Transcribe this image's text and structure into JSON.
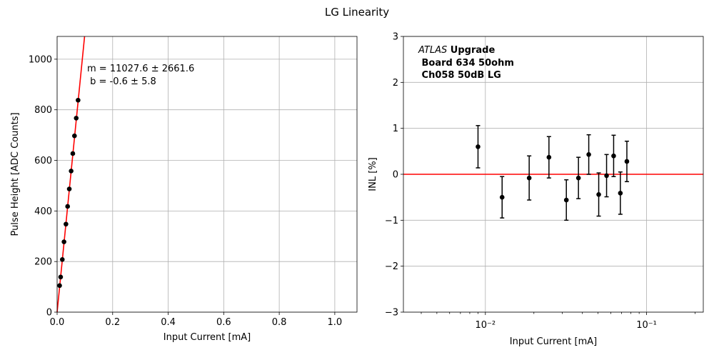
{
  "suptitle": "LG Linearity",
  "chart_data": [
    {
      "type": "scatter",
      "title": "",
      "xlabel": "Input Current [mA]",
      "ylabel": "Pulse Height [ADC Counts]",
      "xlim": [
        0,
        1.08
      ],
      "ylim": [
        0,
        1090
      ],
      "xticks": [
        0.0,
        0.2,
        0.4,
        0.6,
        0.8,
        1.0
      ],
      "xtick_labels": [
        "0.0",
        "0.2",
        "0.4",
        "0.6",
        "0.8",
        "1.0"
      ],
      "yticks": [
        0,
        200,
        400,
        600,
        800,
        1000
      ],
      "ytick_labels": [
        "0",
        "200",
        "400",
        "600",
        "800",
        "1000"
      ],
      "grid": true,
      "series": [
        {
          "name": "data",
          "color": "#000000",
          "x": [
            0.009,
            0.0127,
            0.0187,
            0.0248,
            0.0318,
            0.0378,
            0.0438,
            0.0505,
            0.0565,
            0.0625,
            0.0688,
            0.0755
          ],
          "y": [
            105,
            139,
            208,
            278,
            348,
            418,
            487,
            558,
            627,
            697,
            767,
            838
          ]
        }
      ],
      "fit": {
        "type": "line",
        "color": "#ff0000",
        "slope": 11027.6,
        "intercept": -0.6
      },
      "annotation": [
        "m = 11027.6 ± 2661.6",
        " b = -0.6 ± 5.8"
      ]
    },
    {
      "type": "scatter",
      "title": "",
      "xlabel": "Input Current [mA]",
      "ylabel": "INL [%]",
      "xscale": "log",
      "xlim": [
        0.0031,
        0.225
      ],
      "ylim": [
        -3,
        3
      ],
      "xticks": [
        0.01,
        0.1
      ],
      "xtick_labels": [
        "10⁻²",
        "10⁻¹"
      ],
      "yticks": [
        -3,
        -2,
        -1,
        0,
        1,
        2,
        3
      ],
      "ytick_labels": [
        "−3",
        "−2",
        "−1",
        "0",
        "1",
        "2",
        "3"
      ],
      "grid": true,
      "series": [
        {
          "name": "INL",
          "color": "#000000",
          "x": [
            0.009,
            0.0127,
            0.0187,
            0.0248,
            0.0318,
            0.0378,
            0.0438,
            0.0505,
            0.0565,
            0.0625,
            0.0688,
            0.0755
          ],
          "y": [
            0.6,
            -0.5,
            -0.08,
            0.37,
            -0.56,
            -0.08,
            0.43,
            -0.44,
            -0.03,
            0.4,
            -0.41,
            0.28
          ],
          "yerr": [
            0.46,
            0.45,
            0.48,
            0.45,
            0.44,
            0.45,
            0.43,
            0.47,
            0.46,
            0.45,
            0.46,
            0.44
          ]
        }
      ],
      "reference_line": {
        "y": 0,
        "color": "#ff0000"
      },
      "annotation": {
        "atlas": "ATLAS",
        "upgrade": " Upgrade",
        "line2": " Board 634 50ohm",
        "line3": " Ch058 50dB LG"
      }
    }
  ]
}
